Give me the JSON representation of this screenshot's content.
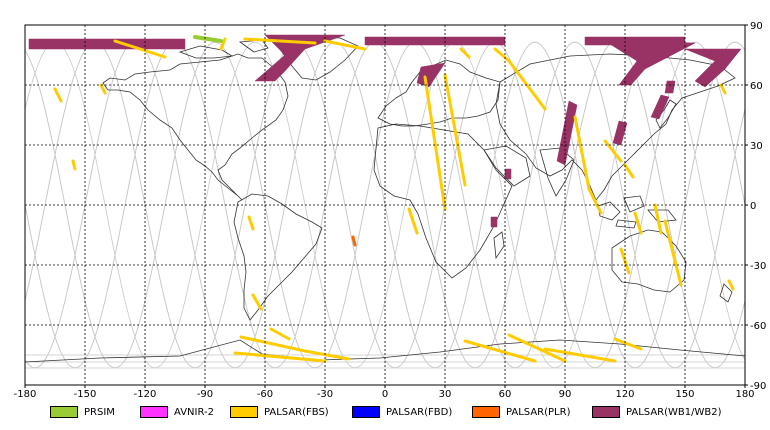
{
  "chart_data": {
    "type": "map",
    "xlim": [
      -180,
      180
    ],
    "ylim": [
      -90,
      90
    ],
    "x_ticks": [
      -180,
      -150,
      -120,
      -90,
      -60,
      -30,
      0,
      30,
      60,
      90,
      120,
      150,
      180
    ],
    "y_ticks": [
      90,
      60,
      30,
      0,
      -30,
      -60,
      -90
    ],
    "grid": "dashed",
    "series": [
      {
        "name": "PRSIM",
        "color": "#99cc33"
      },
      {
        "name": "AVNIR-2",
        "color": "#ff33ff"
      },
      {
        "name": "PALSAR(FBS)",
        "color": "#ffcc00"
      },
      {
        "name": "PALSAR(FBD)",
        "color": "#0000ff"
      },
      {
        "name": "PALSAR(PLR)",
        "color": "#ff6600"
      },
      {
        "name": "PALSAR(WB1/WB2)",
        "color": "#993366"
      }
    ],
    "coverage": {
      "wb": [
        [
          [
            -178,
            83
          ],
          [
            -100,
            83
          ],
          [
            -100,
            78
          ],
          [
            -178,
            78
          ]
        ],
        [
          [
            -60,
            85
          ],
          [
            -20,
            85
          ],
          [
            -40,
            78
          ],
          [
            -50,
            67
          ],
          [
            -55,
            62
          ],
          [
            -65,
            62
          ],
          [
            -50,
            75
          ]
        ],
        [
          [
            -10,
            84
          ],
          [
            60,
            84
          ],
          [
            60,
            80
          ],
          [
            -10,
            80
          ]
        ],
        [
          [
            100,
            84
          ],
          [
            150,
            84
          ],
          [
            150,
            80
          ],
          [
            100,
            80
          ]
        ],
        [
          [
            110,
            82
          ],
          [
            155,
            81
          ],
          [
            130,
            68
          ],
          [
            123,
            60
          ],
          [
            117,
            60
          ],
          [
            126,
            72
          ]
        ],
        [
          [
            18,
            69
          ],
          [
            30,
            71
          ],
          [
            22,
            59
          ],
          [
            16,
            61
          ]
        ],
        [
          [
            150,
            78
          ],
          [
            178,
            78
          ],
          [
            170,
            68
          ],
          [
            160,
            59
          ],
          [
            155,
            62
          ],
          [
            165,
            72
          ]
        ],
        [
          [
            92,
            52
          ],
          [
            96,
            50
          ],
          [
            90,
            20
          ],
          [
            86,
            22
          ]
        ],
        [
          [
            117,
            42
          ],
          [
            121,
            41
          ],
          [
            118,
            30
          ],
          [
            114,
            31
          ]
        ],
        [
          [
            138,
            55
          ],
          [
            142,
            54
          ],
          [
            137,
            43
          ],
          [
            133,
            44
          ]
        ],
        [
          [
            141,
            62
          ],
          [
            145,
            62
          ],
          [
            144,
            56
          ],
          [
            140,
            56
          ]
        ],
        [
          [
            60,
            18
          ],
          [
            63,
            18
          ],
          [
            63,
            13
          ],
          [
            60,
            13
          ]
        ],
        [
          [
            53,
            -6
          ],
          [
            56,
            -6
          ],
          [
            56,
            -11
          ],
          [
            53,
            -11
          ]
        ]
      ],
      "fbs": [
        [
          [
            -135,
            82
          ],
          [
            -110,
            74
          ]
        ],
        [
          [
            -70,
            83
          ],
          [
            -35,
            81
          ]
        ],
        [
          [
            -30,
            82
          ],
          [
            -10,
            78
          ]
        ],
        [
          [
            -165,
            58
          ],
          [
            -162,
            52
          ]
        ],
        [
          [
            -142,
            60
          ],
          [
            -140,
            56
          ]
        ],
        [
          [
            -156,
            22
          ],
          [
            -155,
            18
          ]
        ],
        [
          [
            -68,
            -6
          ],
          [
            -66,
            -12
          ]
        ],
        [
          [
            -66,
            -45
          ],
          [
            -62,
            -52
          ]
        ],
        [
          [
            -57,
            -62
          ],
          [
            -48,
            -67
          ]
        ],
        [
          [
            -72,
            -66
          ],
          [
            -40,
            -73
          ],
          [
            -18,
            -77
          ]
        ],
        [
          [
            -75,
            -74
          ],
          [
            -30,
            -78
          ]
        ],
        [
          [
            20,
            64
          ],
          [
            30,
            -2
          ]
        ],
        [
          [
            30,
            65
          ],
          [
            40,
            10
          ]
        ],
        [
          [
            12,
            -2
          ],
          [
            16,
            -14
          ]
        ],
        [
          [
            38,
            78
          ],
          [
            42,
            74
          ]
        ],
        [
          [
            55,
            78
          ],
          [
            62,
            72
          ],
          [
            80,
            48
          ]
        ],
        [
          [
            62,
            -65
          ],
          [
            90,
            -78
          ]
        ],
        [
          [
            40,
            -68
          ],
          [
            75,
            -78
          ]
        ],
        [
          [
            95,
            44
          ],
          [
            102,
            8
          ],
          [
            108,
            -4
          ]
        ],
        [
          [
            110,
            32
          ],
          [
            118,
            22
          ]
        ],
        [
          [
            120,
            20
          ],
          [
            124,
            14
          ]
        ],
        [
          [
            118,
            -22
          ],
          [
            122,
            -34
          ]
        ],
        [
          [
            125,
            -4
          ],
          [
            128,
            -14
          ]
        ],
        [
          [
            135,
            0
          ],
          [
            138,
            -14
          ]
        ],
        [
          [
            140,
            -8
          ],
          [
            148,
            -40
          ]
        ],
        [
          [
            172,
            -38
          ],
          [
            174,
            -42
          ]
        ],
        [
          [
            80,
            -72
          ],
          [
            115,
            -78
          ]
        ],
        [
          [
            115,
            -67
          ],
          [
            128,
            -72
          ]
        ],
        [
          [
            -80,
            83
          ],
          [
            -82,
            78
          ]
        ],
        [
          [
            168,
            60
          ],
          [
            170,
            56
          ]
        ]
      ],
      "prism": [
        [
          [
            -95,
            84
          ],
          [
            -82,
            82
          ]
        ]
      ],
      "plr": [
        [
          [
            -16,
            -16
          ],
          [
            -15,
            -20
          ]
        ]
      ]
    }
  },
  "legend": {
    "items": [
      {
        "label": "PRSIM",
        "color": "#99cc33"
      },
      {
        "label": "AVNIR-2",
        "color": "#ff33ff"
      },
      {
        "label": "PALSAR(FBS)",
        "color": "#ffcc00"
      },
      {
        "label": "PALSAR(FBD)",
        "color": "#0000ff"
      },
      {
        "label": "PALSAR(PLR)",
        "color": "#ff6600"
      },
      {
        "label": "PALSAR(WB1/WB2)",
        "color": "#993366"
      }
    ]
  }
}
